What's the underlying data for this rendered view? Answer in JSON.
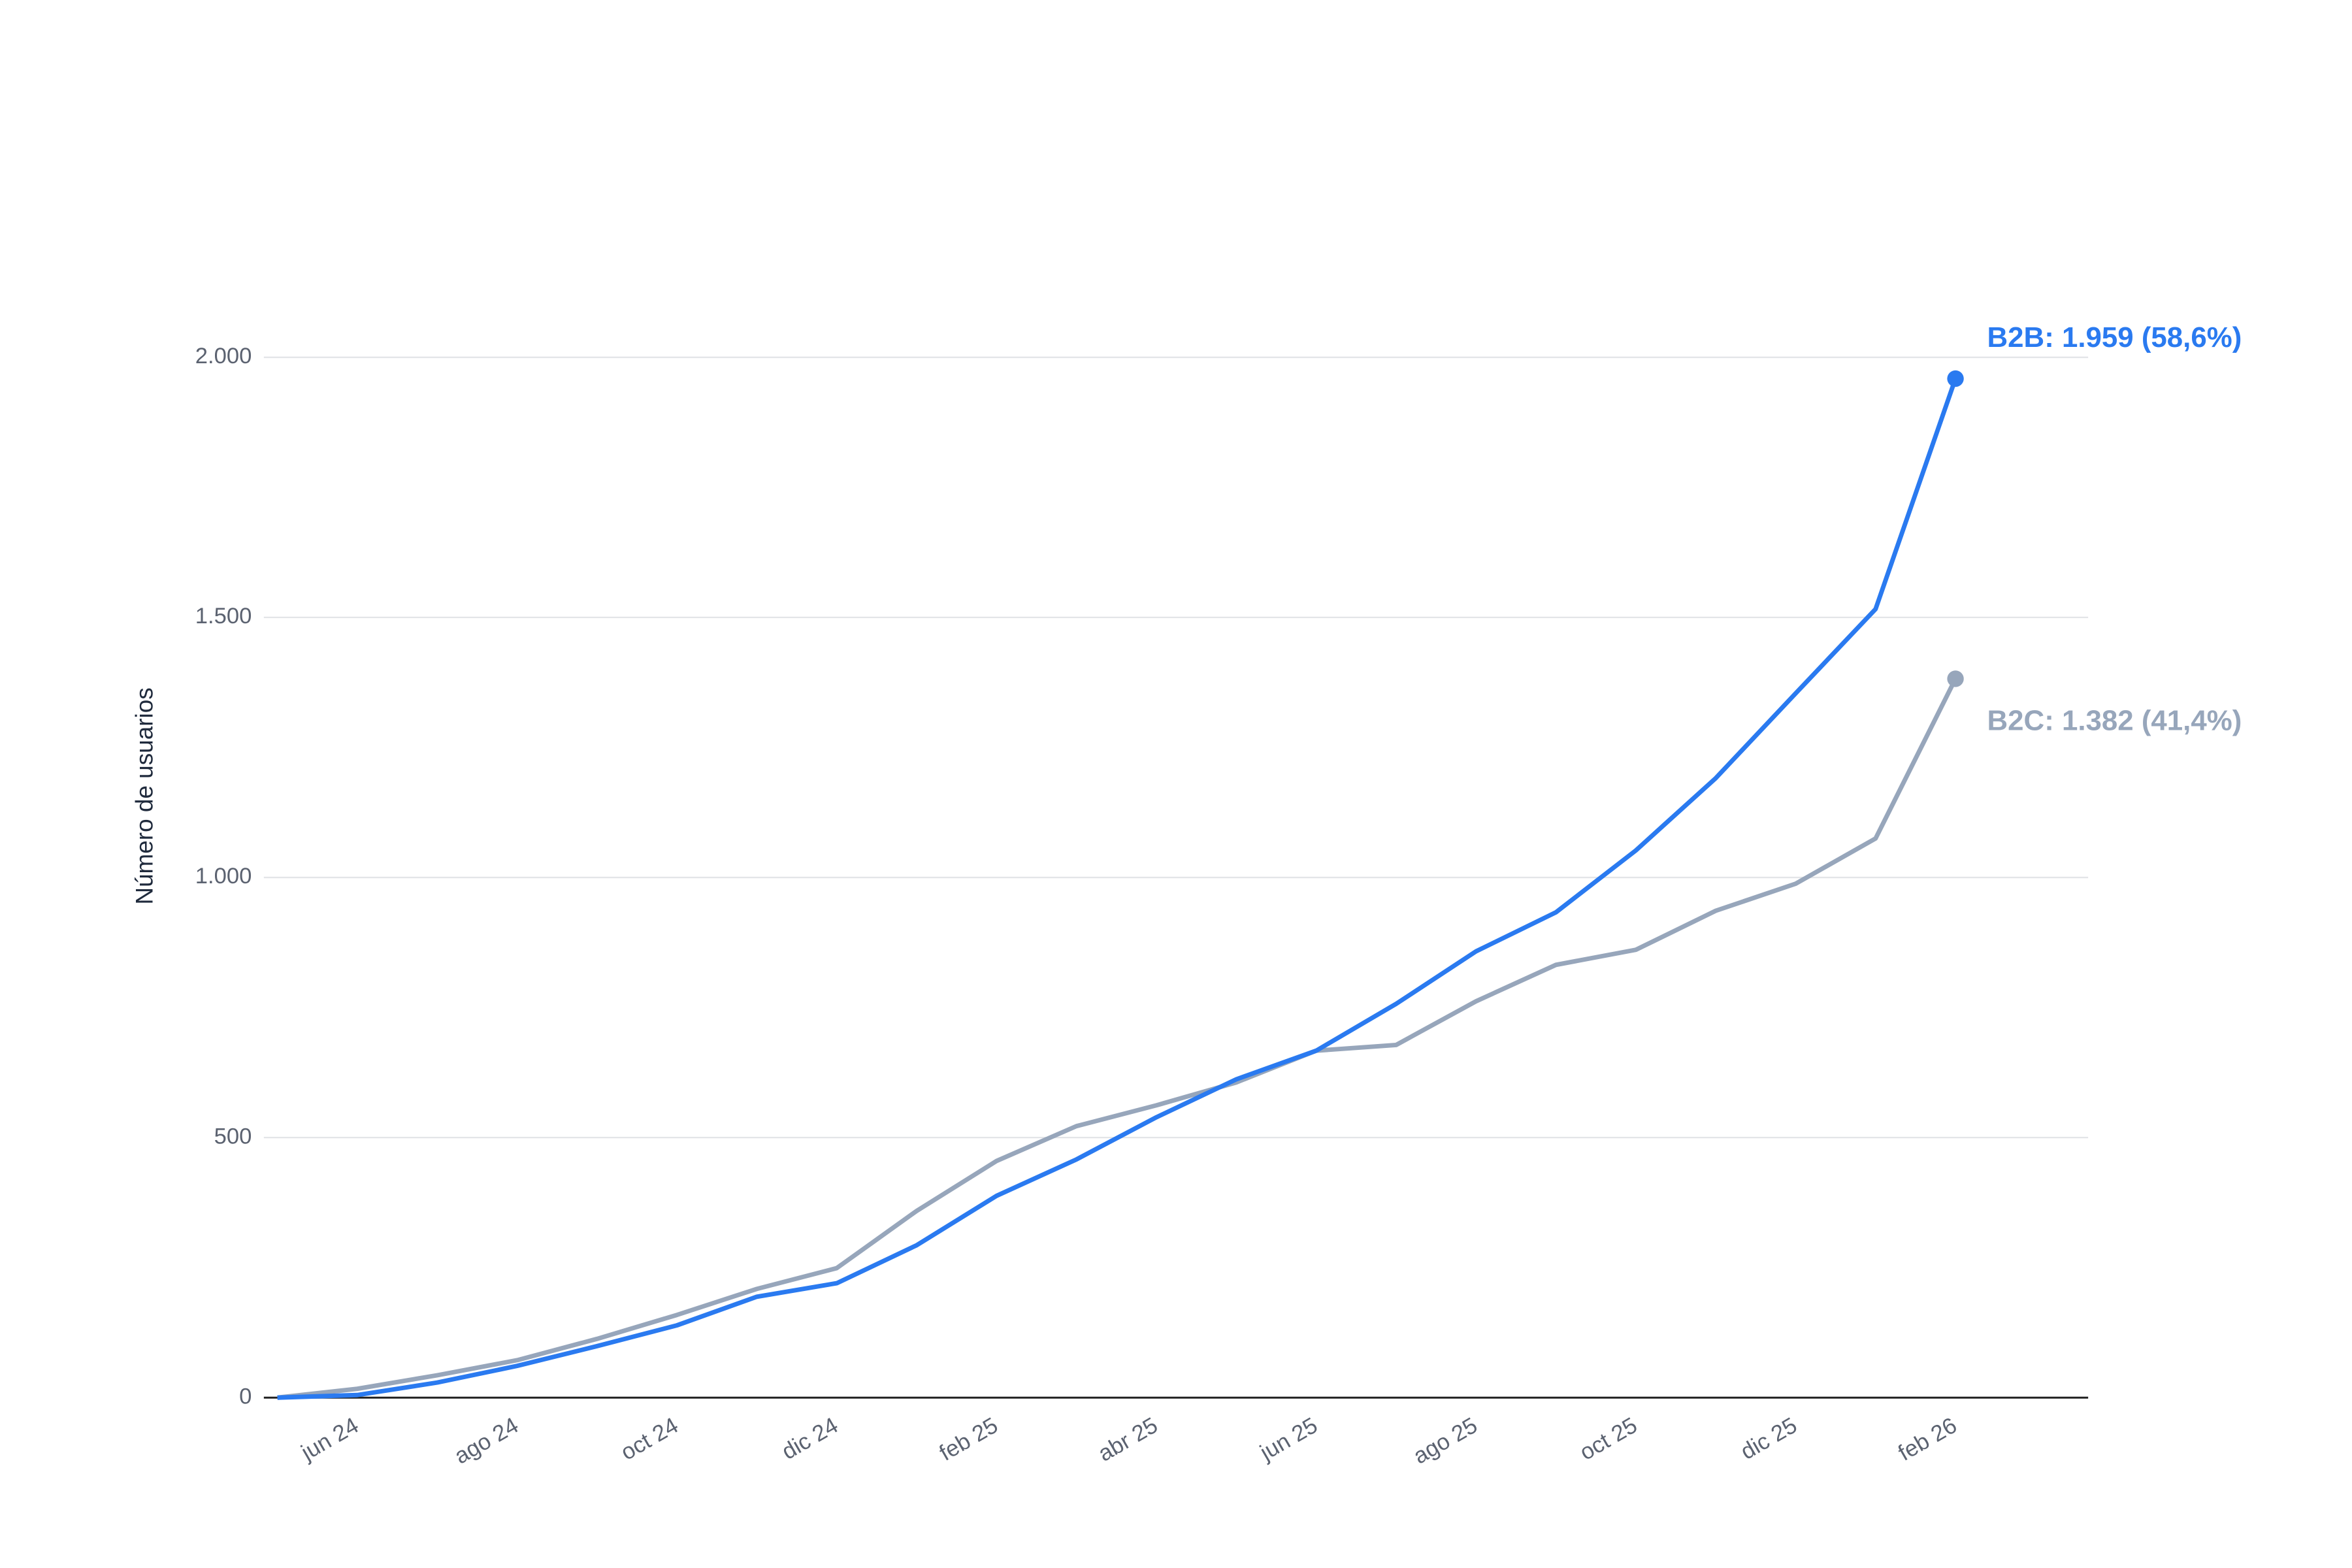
{
  "chart_data": {
    "type": "line",
    "y_label": "Número de usuarios",
    "categories": [
      null,
      "jun 24",
      null,
      "ago 24",
      null,
      "oct 24",
      null,
      "dic 24",
      null,
      "feb 25",
      null,
      "abr 25",
      null,
      "jun 25",
      null,
      "ago 25",
      null,
      "oct 25",
      null,
      "dic 25",
      null,
      "feb 26"
    ],
    "series": [
      {
        "color": "#2a7af0",
        "values": [
          0,
          5,
          29,
          61,
          99,
          139,
          194,
          220,
          293,
          388,
          458,
          539,
          612,
          667,
          757,
          858,
          933,
          1052,
          1191,
          1354,
          1516,
          1959
        ],
        "value_labels": [
          null,
          null,
          null,
          null,
          null,
          null,
          null,
          null,
          null,
          null,
          null,
          null,
          null,
          null,
          null,
          null,
          null,
          null,
          null,
          null,
          null,
          "B2B: 1.959 (58,6%)"
        ]
      },
      {
        "color": "#97a6bb",
        "values": [
          0,
          17,
          43,
          72,
          113,
          159,
          209,
          249,
          359,
          455,
          522,
          562,
          606,
          667,
          678,
          762,
          832,
          861,
          936,
          988,
          1075,
          1382
        ],
        "value_labels": [
          null,
          null,
          null,
          null,
          null,
          null,
          null,
          null,
          null,
          null,
          null,
          null,
          null,
          null,
          null,
          null,
          null,
          null,
          null,
          null,
          null,
          "B2C: 1.382 (41,4%)"
        ]
      }
    ],
    "ylim": [
      0,
      2000
    ],
    "yticks": [
      0,
      500,
      {
        "value": 1000,
        "label": "1.000"
      },
      {
        "value": 1500,
        "label": "1.500"
      },
      {
        "value": 2000,
        "label": "2.000"
      }
    ],
    "grid": true
  }
}
